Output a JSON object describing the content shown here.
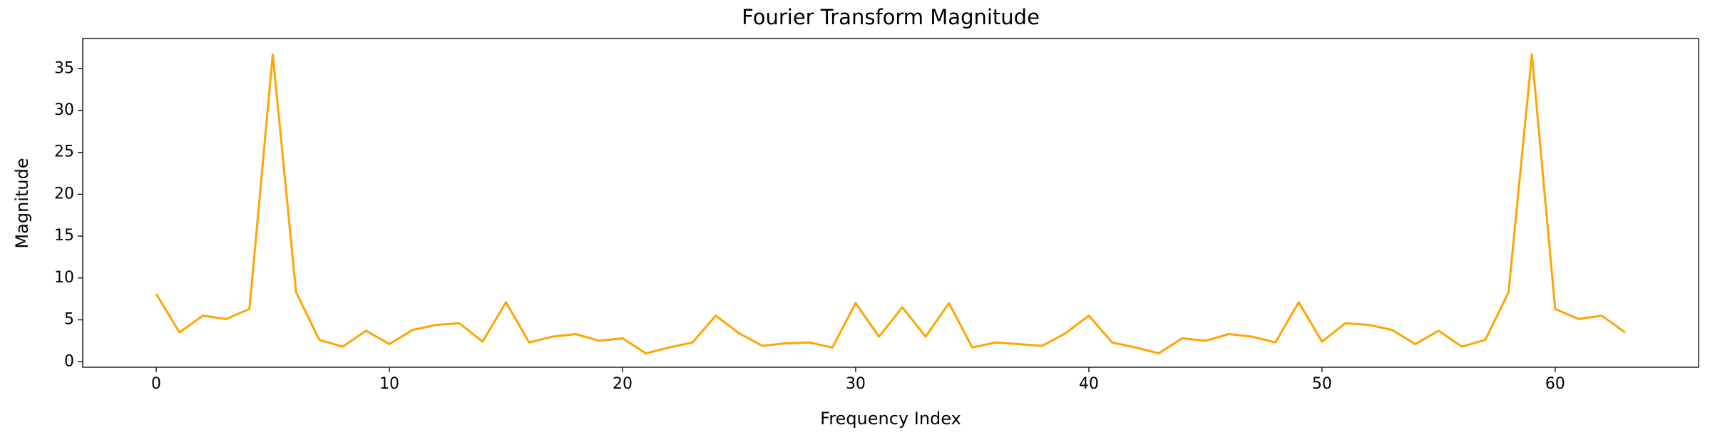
{
  "chart_data": {
    "type": "line",
    "title": "Fourier Transform Magnitude",
    "x_label": "Frequency Index",
    "y_label": "Magnitude",
    "x": [
      0,
      1,
      2,
      3,
      4,
      5,
      6,
      7,
      8,
      9,
      10,
      11,
      12,
      13,
      14,
      15,
      16,
      17,
      18,
      19,
      20,
      21,
      22,
      23,
      24,
      25,
      26,
      27,
      28,
      29,
      30,
      31,
      32,
      33,
      34,
      35,
      36,
      37,
      38,
      39,
      40,
      41,
      42,
      43,
      44,
      45,
      46,
      47,
      48,
      49,
      50,
      51,
      52,
      53,
      54,
      55,
      56,
      57,
      58,
      59,
      60,
      61,
      62,
      63
    ],
    "values": [
      8.1,
      3.5,
      5.5,
      5.1,
      6.3,
      36.7,
      8.3,
      2.6,
      1.8,
      3.7,
      2.1,
      3.8,
      4.4,
      4.6,
      2.4,
      7.1,
      2.3,
      3.0,
      3.3,
      2.5,
      2.8,
      1.0,
      1.7,
      2.3,
      5.5,
      3.4,
      1.9,
      2.2,
      2.3,
      1.7,
      7.0,
      3.0,
      6.5,
      3.0,
      7.0,
      1.7,
      2.3,
      2.1,
      1.9,
      3.4,
      5.5,
      2.3,
      1.7,
      1.0,
      2.8,
      2.5,
      3.3,
      3.0,
      2.3,
      7.1,
      2.4,
      4.6,
      4.4,
      3.8,
      2.1,
      3.7,
      1.8,
      2.6,
      8.3,
      36.7,
      6.3,
      5.1,
      5.5,
      3.5
    ],
    "color": "#ffa500",
    "xlim": [
      -3.15,
      66.15
    ],
    "ylim": [
      -0.66,
      38.6
    ],
    "xticks": [
      0,
      10,
      20,
      30,
      40,
      50,
      60
    ],
    "yticks": [
      0,
      5,
      10,
      15,
      20,
      25,
      30,
      35
    ],
    "grid": false
  }
}
